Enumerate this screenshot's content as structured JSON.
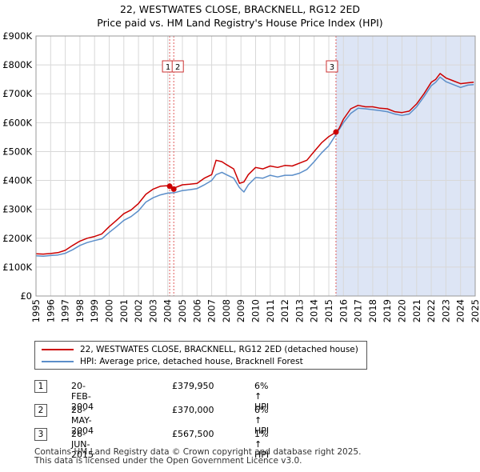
{
  "title": "22, WESTWATES CLOSE, BRACKNELL, RG12 2ED",
  "subtitle": "Price paid vs. HM Land Registry's House Price Index (HPI)",
  "colors": {
    "property": "#cc0000",
    "hpi": "#5b8ec9",
    "shade": "#dde5f5",
    "marker": "#cc0000",
    "vline": "#e05c5c"
  },
  "legend": {
    "property": "22, WESTWATES CLOSE, BRACKNELL, RG12 2ED (detached house)",
    "hpi": "HPI: Average price, detached house, Bracknell Forest"
  },
  "sales": [
    {
      "num": "1",
      "date": "20-FEB-2004",
      "price": "£379,950",
      "hpi": "6% ↑ HPI"
    },
    {
      "num": "2",
      "date": "28-MAY-2004",
      "price": "£370,000",
      "hpi": "6% ↑ HPI"
    },
    {
      "num": "3",
      "date": "26-JUN-2015",
      "price": "£567,500",
      "hpi": "1% ↑ HPI"
    }
  ],
  "footer": {
    "line1": "Contains HM Land Registry data © Crown copyright and database right 2025.",
    "line2": "This data is licensed under the Open Government Licence v3.0."
  },
  "chart_data": {
    "type": "line",
    "xlim": [
      1995,
      2025
    ],
    "ylim": [
      0,
      900000
    ],
    "x_ticks": [
      1995,
      1996,
      1997,
      1998,
      1999,
      2000,
      2001,
      2002,
      2003,
      2004,
      2005,
      2006,
      2007,
      2008,
      2009,
      2010,
      2011,
      2012,
      2013,
      2014,
      2015,
      2016,
      2017,
      2018,
      2019,
      2020,
      2021,
      2022,
      2023,
      2024,
      2025
    ],
    "y_ticks": [
      {
        "value": 0,
        "label": "£0"
      },
      {
        "value": 100000,
        "label": "£100K"
      },
      {
        "value": 200000,
        "label": "£200K"
      },
      {
        "value": 300000,
        "label": "£300K"
      },
      {
        "value": 400000,
        "label": "£400K"
      },
      {
        "value": 500000,
        "label": "£500K"
      },
      {
        "value": 600000,
        "label": "£600K"
      },
      {
        "value": 700000,
        "label": "£700K"
      },
      {
        "value": 800000,
        "label": "£800K"
      },
      {
        "value": 900000,
        "label": "£900K"
      }
    ],
    "shaded_from": 2015.49,
    "markers": [
      {
        "label": "1",
        "x": 2004.13,
        "y": 379950
      },
      {
        "label": "2",
        "x": 2004.41,
        "y": 370000
      },
      {
        "label": "3",
        "x": 2015.49,
        "y": 567500
      }
    ],
    "series": [
      {
        "name": "22, WESTWATES CLOSE, BRACKNELL, RG12 2ED (detached house)",
        "x": [
          1995,
          1995.5,
          1996,
          1996.5,
          1997,
          1997.5,
          1998,
          1998.5,
          1999,
          1999.5,
          2000,
          2000.5,
          2001,
          2001.5,
          2002,
          2002.5,
          2003,
          2003.5,
          2004,
          2004.13,
          2004.41,
          2004.5,
          2005,
          2005.5,
          2006,
          2006.5,
          2007,
          2007.3,
          2007.7,
          2008,
          2008.5,
          2008.9,
          2009.2,
          2009.5,
          2010,
          2010.5,
          2011,
          2011.5,
          2012,
          2012.5,
          2013,
          2013.5,
          2014,
          2014.5,
          2015,
          2015.49,
          2015.7,
          2016,
          2016.5,
          2017,
          2017.5,
          2018,
          2018.5,
          2019,
          2019.5,
          2020,
          2020.5,
          2021,
          2021.5,
          2022,
          2022.3,
          2022.6,
          2023,
          2023.5,
          2024,
          2024.5,
          2024.9
        ],
        "values": [
          146000,
          145000,
          147000,
          150000,
          158000,
          175000,
          190000,
          200000,
          206000,
          215000,
          240000,
          262000,
          285000,
          298000,
          320000,
          352000,
          370000,
          380000,
          382000,
          379950,
          370000,
          375000,
          385000,
          387000,
          390000,
          408000,
          420000,
          470000,
          465000,
          455000,
          440000,
          390000,
          395000,
          420000,
          445000,
          440000,
          450000,
          445000,
          452000,
          450000,
          460000,
          470000,
          500000,
          530000,
          552000,
          567500,
          580000,
          612000,
          648000,
          660000,
          655000,
          655000,
          650000,
          648000,
          638000,
          635000,
          640000,
          665000,
          700000,
          740000,
          750000,
          770000,
          755000,
          745000,
          735000,
          738000,
          740000
        ]
      },
      {
        "name": "HPI: Average price, detached house, Bracknell Forest",
        "x": [
          1995,
          1995.5,
          1996,
          1996.5,
          1997,
          1997.5,
          1998,
          1998.5,
          1999,
          1999.5,
          2000,
          2000.5,
          2001,
          2001.5,
          2002,
          2002.5,
          2003,
          2003.5,
          2004,
          2004.5,
          2005,
          2005.5,
          2006,
          2006.5,
          2007,
          2007.3,
          2007.7,
          2008,
          2008.5,
          2008.9,
          2009.2,
          2009.5,
          2010,
          2010.5,
          2011,
          2011.5,
          2012,
          2012.5,
          2013,
          2013.5,
          2014,
          2014.5,
          2015,
          2015.5,
          2016,
          2016.5,
          2017,
          2017.5,
          2018,
          2018.5,
          2019,
          2019.5,
          2020,
          2020.5,
          2021,
          2021.5,
          2022,
          2022.3,
          2022.6,
          2023,
          2023.5,
          2024,
          2024.5,
          2024.9
        ],
        "values": [
          139000,
          138000,
          140000,
          142000,
          148000,
          160000,
          175000,
          185000,
          192000,
          198000,
          220000,
          240000,
          262000,
          275000,
          295000,
          325000,
          340000,
          350000,
          356000,
          358000,
          365000,
          368000,
          372000,
          385000,
          400000,
          420000,
          428000,
          420000,
          408000,
          375000,
          360000,
          385000,
          410000,
          408000,
          418000,
          412000,
          418000,
          418000,
          425000,
          438000,
          465000,
          495000,
          520000,
          560000,
          600000,
          632000,
          650000,
          648000,
          645000,
          642000,
          638000,
          630000,
          625000,
          630000,
          655000,
          690000,
          728000,
          740000,
          758000,
          742000,
          732000,
          722000,
          730000,
          732000
        ]
      }
    ]
  }
}
